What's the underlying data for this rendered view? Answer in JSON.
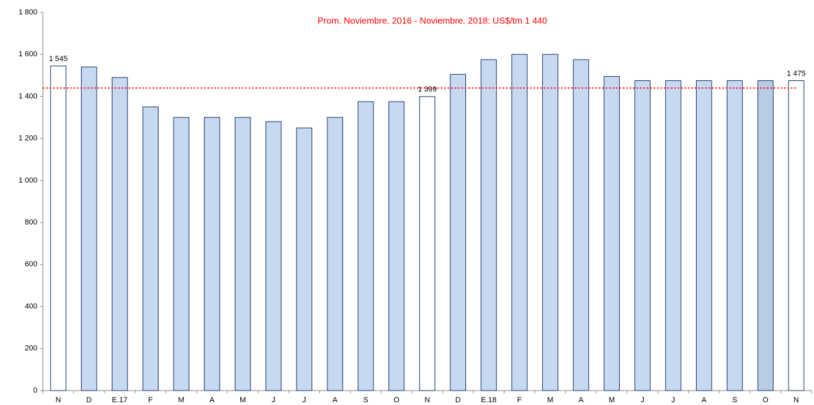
{
  "chart_data": {
    "type": "bar",
    "subtitle": "Prom. Noviembre. 2016 - Noviembre. 2018: US$/tm 1 440",
    "categories": [
      "N",
      "D",
      "E.17",
      "F",
      "M",
      "A",
      "M",
      "J",
      "J",
      "A",
      "S",
      "O",
      "N",
      "D",
      "E.18",
      "F",
      "M",
      "A",
      "M",
      "J",
      "J",
      "A",
      "S",
      "O",
      "N"
    ],
    "values": [
      1545,
      1540,
      1490,
      1350,
      1300,
      1300,
      1300,
      1280,
      1250,
      1300,
      1375,
      1375,
      1399,
      1505,
      1575,
      1600,
      1600,
      1575,
      1495,
      1475,
      1475,
      1475,
      1475,
      1475,
      1475
    ],
    "value_labels": [
      "1 545",
      null,
      null,
      null,
      null,
      null,
      null,
      null,
      null,
      null,
      null,
      null,
      "1 399",
      null,
      null,
      null,
      null,
      null,
      null,
      null,
      null,
      null,
      null,
      null,
      "1 475"
    ],
    "colors": [
      "#ffffff",
      "#c6d9f1",
      "#c6d9f1",
      "#c6d9f1",
      "#c6d9f1",
      "#c6d9f1",
      "#c6d9f1",
      "#c6d9f1",
      "#c6d9f1",
      "#c6d9f1",
      "#c6d9f1",
      "#c6d9f1",
      "#ffffff",
      "#c6d9f1",
      "#c6d9f1",
      "#c6d9f1",
      "#c6d9f1",
      "#c6d9f1",
      "#c6d9f1",
      "#c6d9f1",
      "#c6d9f1",
      "#c6d9f1",
      "#c6d9f1",
      "#b8cce4",
      "#ffffff"
    ],
    "edge_color": "#1f3a6e",
    "reference_line": {
      "value": 1440,
      "color": "#ff0000"
    },
    "ylim": [
      0,
      1800
    ],
    "yticks": [
      0,
      200,
      400,
      600,
      800,
      {
        "value": 1000,
        "label": "1 000"
      },
      {
        "value": 1200,
        "label": "1 200"
      },
      {
        "value": 1400,
        "label": "1 400"
      },
      {
        "value": 1600,
        "label": "1 600"
      },
      {
        "value": 1800,
        "label": "1 800"
      }
    ],
    "grid": false
  }
}
